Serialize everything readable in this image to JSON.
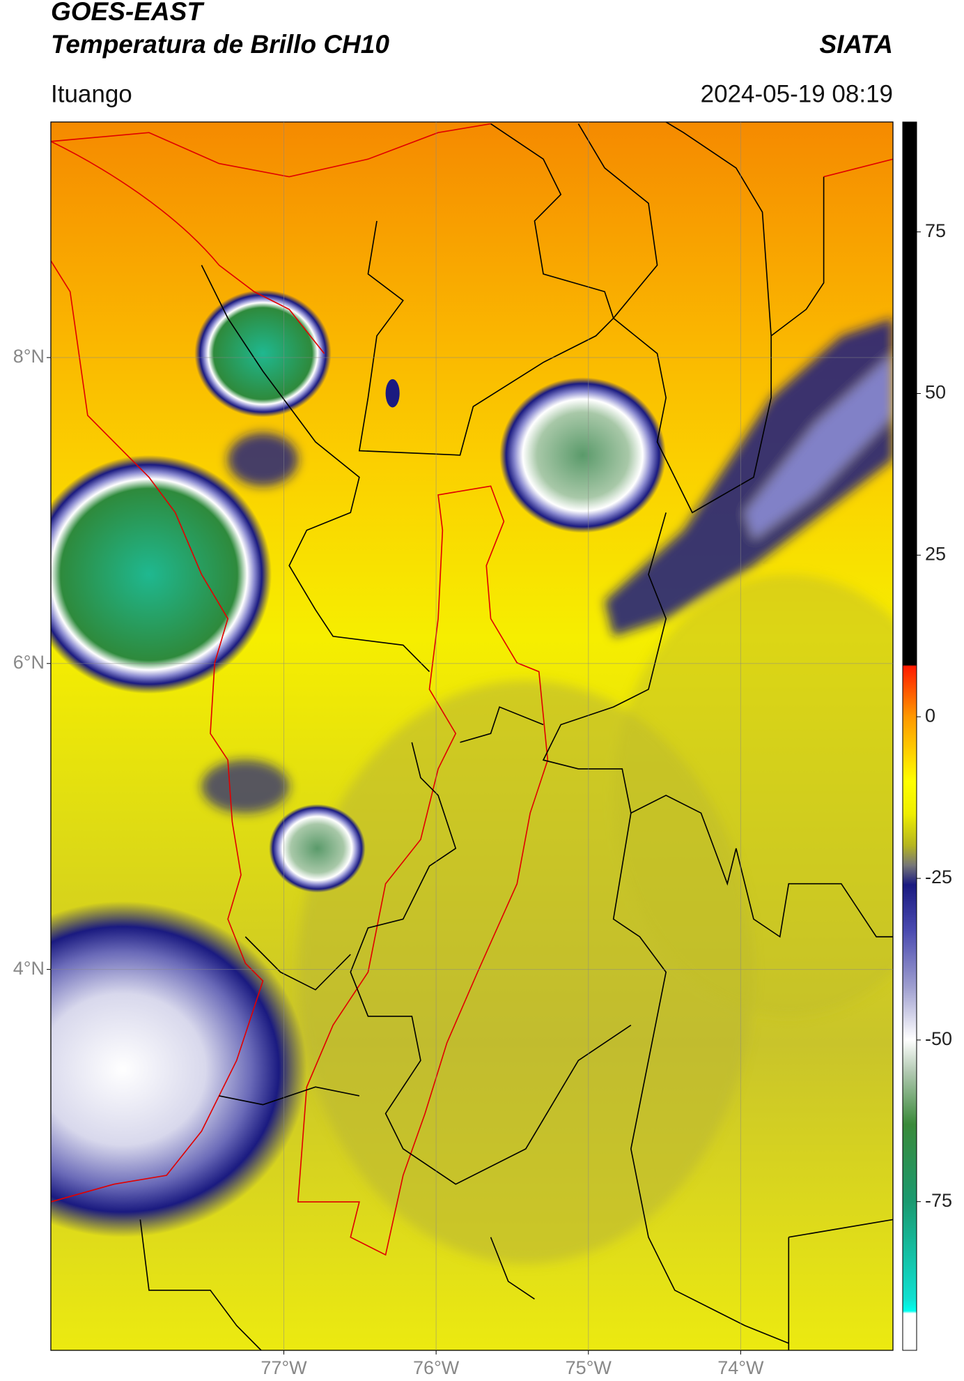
{
  "chart_data": {
    "type": "map",
    "title": "GOES-EAST",
    "subtitle": "Temperatura de Brillo CH10",
    "source": "SIATA",
    "location": "Ituango",
    "datetime": "2024-05-19 08:19",
    "xlim": [
      -78.53,
      -73.0
    ],
    "ylim": [
      1.51,
      9.54
    ],
    "xticks": [
      {
        "value": -77,
        "label": "77°W"
      },
      {
        "value": -76,
        "label": "76°W"
      },
      {
        "value": -75,
        "label": "75°W"
      },
      {
        "value": -74,
        "label": "74°W"
      }
    ],
    "yticks": [
      {
        "value": 4,
        "label": "4°N"
      },
      {
        "value": 6,
        "label": "6°N"
      },
      {
        "value": 8,
        "label": "8°N"
      }
    ],
    "grid": true,
    "colorbar": {
      "lim": [
        -98,
        92
      ],
      "ticks": [
        -75,
        -50,
        -25,
        0,
        25,
        50,
        75
      ]
    }
  }
}
